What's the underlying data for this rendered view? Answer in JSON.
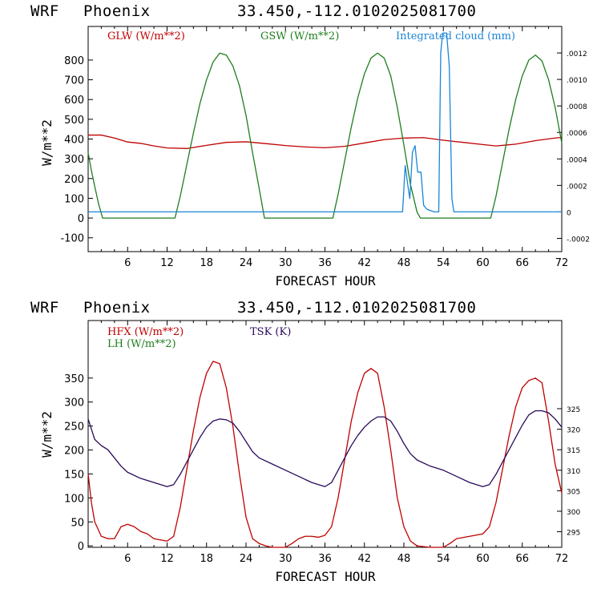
{
  "colors": {
    "red": "#c00000",
    "green": "#1e7d1e",
    "blue": "#1b85d6",
    "purple": "#2a0a5a",
    "axis": "#000000"
  },
  "chart_data": [
    {
      "type": "line",
      "header": {
        "model": "WRF",
        "location": "Phoenix",
        "coords": "33.450,-112.010",
        "init": "2025081700"
      },
      "xlabel": "FORECAST HOUR",
      "ylabel": "W/m**2",
      "xlim": [
        0,
        72
      ],
      "ylim": [
        -170,
        970
      ],
      "xticks": [
        6,
        12,
        18,
        24,
        30,
        36,
        42,
        48,
        54,
        60,
        66,
        72
      ],
      "yticks": [
        -100,
        0,
        100,
        200,
        300,
        400,
        500,
        600,
        700,
        800
      ],
      "right_axis": {
        "ylim": [
          -0.0003,
          0.0014
        ],
        "ticks": [
          -0.0002,
          0,
          0.0002,
          0.0004,
          0.0006,
          0.0008,
          0.001,
          0.0012
        ],
        "tick_labels": [
          "-.0002",
          "0",
          ".0002",
          ".0004",
          ".0006",
          ".0008",
          ".0010",
          ".0012"
        ]
      },
      "series": [
        {
          "name": "GLW (W/m**2)",
          "color_key": "red",
          "axis": "left",
          "points": [
            [
              0,
              420
            ],
            [
              2,
              420
            ],
            [
              4,
              405
            ],
            [
              6,
              385
            ],
            [
              8,
              378
            ],
            [
              10,
              365
            ],
            [
              12,
              355
            ],
            [
              15,
              352
            ],
            [
              18,
              368
            ],
            [
              21,
              383
            ],
            [
              24,
              386
            ],
            [
              27,
              377
            ],
            [
              30,
              367
            ],
            [
              33,
              360
            ],
            [
              36,
              356
            ],
            [
              39,
              363
            ],
            [
              42,
              380
            ],
            [
              45,
              397
            ],
            [
              48,
              405
            ],
            [
              51,
              407
            ],
            [
              54,
              394
            ],
            [
              57,
              383
            ],
            [
              60,
              372
            ],
            [
              62,
              365
            ],
            [
              65,
              374
            ],
            [
              68,
              392
            ],
            [
              71,
              405
            ],
            [
              72,
              408
            ]
          ]
        },
        {
          "name": "GSW (W/m**2)",
          "color_key": "green",
          "axis": "left",
          "points": [
            [
              0,
              330
            ],
            [
              0.5,
              240
            ],
            [
              1,
              160
            ],
            [
              1.6,
              70
            ],
            [
              2.2,
              0
            ],
            [
              13.2,
              0
            ],
            [
              14,
              110
            ],
            [
              15,
              270
            ],
            [
              16,
              430
            ],
            [
              17,
              580
            ],
            [
              18,
              700
            ],
            [
              19,
              790
            ],
            [
              20,
              835
            ],
            [
              21,
              825
            ],
            [
              22,
              770
            ],
            [
              23,
              670
            ],
            [
              24,
              520
            ],
            [
              25,
              330
            ],
            [
              26,
              150
            ],
            [
              26.8,
              0
            ],
            [
              37.2,
              0
            ],
            [
              38,
              120
            ],
            [
              39,
              290
            ],
            [
              40,
              460
            ],
            [
              41,
              610
            ],
            [
              42,
              730
            ],
            [
              43,
              810
            ],
            [
              44,
              835
            ],
            [
              45,
              810
            ],
            [
              46,
              720
            ],
            [
              47,
              560
            ],
            [
              48,
              370
            ],
            [
              49,
              170
            ],
            [
              50,
              30
            ],
            [
              50.5,
              0
            ],
            [
              61.2,
              0
            ],
            [
              62,
              110
            ],
            [
              63,
              280
            ],
            [
              64,
              450
            ],
            [
              65,
              600
            ],
            [
              66,
              720
            ],
            [
              67,
              800
            ],
            [
              68,
              825
            ],
            [
              69,
              795
            ],
            [
              70,
              700
            ],
            [
              71,
              560
            ],
            [
              72,
              380
            ]
          ]
        },
        {
          "name": "Integrated cloud (mm)",
          "color_key": "blue",
          "axis": "right",
          "points": [
            [
              0,
              0
            ],
            [
              47.8,
              0
            ],
            [
              48.2,
              0.00035
            ],
            [
              48.6,
              0.0002
            ],
            [
              48.9,
              0.0001
            ],
            [
              49.3,
              0.00045
            ],
            [
              49.7,
              0.0005
            ],
            [
              50.1,
              0.0003
            ],
            [
              50.6,
              0.0003
            ],
            [
              51,
              5e-05
            ],
            [
              51.5,
              2e-05
            ],
            [
              52.6,
              0
            ],
            [
              53.3,
              0
            ],
            [
              53.6,
              0.0012
            ],
            [
              53.9,
              0.00135
            ],
            [
              54.5,
              0.00135
            ],
            [
              54.9,
              0.0011
            ],
            [
              55.3,
              0.0001
            ],
            [
              55.6,
              0
            ],
            [
              72,
              0
            ]
          ]
        }
      ]
    },
    {
      "type": "line",
      "header": {
        "model": "WRF",
        "location": "Phoenix",
        "coords": "33.450,-112.010",
        "init": "2025081700"
      },
      "xlabel": "FORECAST HOUR",
      "ylabel": "W/m**2",
      "xlim": [
        0,
        72
      ],
      "ylim": [
        -3,
        470
      ],
      "xticks": [
        6,
        12,
        18,
        24,
        30,
        36,
        42,
        48,
        54,
        60,
        66,
        72
      ],
      "yticks": [
        0,
        50,
        100,
        150,
        200,
        250,
        300,
        350
      ],
      "right_axis": {
        "ylim": [
          291.2,
          346.5
        ],
        "ticks": [
          295,
          300,
          305,
          310,
          315,
          320,
          325
        ],
        "tick_labels": [
          "295",
          "300",
          "305",
          "310",
          "315",
          "320",
          "325"
        ]
      },
      "series": [
        {
          "name": "HFX (W/m**2)",
          "color_key": "red",
          "axis": "left",
          "points": [
            [
              0,
              150
            ],
            [
              0.5,
              90
            ],
            [
              1,
              50
            ],
            [
              2,
              20
            ],
            [
              3,
              15
            ],
            [
              4,
              15
            ],
            [
              5,
              40
            ],
            [
              6,
              45
            ],
            [
              7,
              40
            ],
            [
              8,
              30
            ],
            [
              9,
              25
            ],
            [
              10,
              15
            ],
            [
              12,
              10
            ],
            [
              13,
              20
            ],
            [
              14,
              80
            ],
            [
              15,
              160
            ],
            [
              16,
              240
            ],
            [
              17,
              310
            ],
            [
              18,
              360
            ],
            [
              19,
              385
            ],
            [
              20,
              380
            ],
            [
              21,
              330
            ],
            [
              22,
              250
            ],
            [
              23,
              150
            ],
            [
              24,
              60
            ],
            [
              25,
              15
            ],
            [
              26,
              5
            ],
            [
              27,
              0
            ],
            [
              28,
              -3
            ],
            [
              30,
              -3
            ],
            [
              31,
              5
            ],
            [
              32,
              15
            ],
            [
              33,
              20
            ],
            [
              34,
              20
            ],
            [
              35,
              18
            ],
            [
              36,
              22
            ],
            [
              37,
              40
            ],
            [
              38,
              100
            ],
            [
              39,
              180
            ],
            [
              40,
              260
            ],
            [
              41,
              320
            ],
            [
              42,
              360
            ],
            [
              43,
              370
            ],
            [
              44,
              360
            ],
            [
              45,
              290
            ],
            [
              46,
              200
            ],
            [
              47,
              100
            ],
            [
              48,
              40
            ],
            [
              49,
              10
            ],
            [
              50,
              0
            ],
            [
              52,
              -3
            ],
            [
              54,
              -3
            ],
            [
              55,
              5
            ],
            [
              56,
              15
            ],
            [
              58,
              20
            ],
            [
              60,
              25
            ],
            [
              61,
              40
            ],
            [
              62,
              90
            ],
            [
              63,
              160
            ],
            [
              64,
              230
            ],
            [
              65,
              290
            ],
            [
              66,
              330
            ],
            [
              67,
              345
            ],
            [
              68,
              350
            ],
            [
              69,
              340
            ],
            [
              70,
              260
            ],
            [
              71,
              170
            ],
            [
              72,
              110
            ]
          ]
        },
        {
          "name": "TSK (K)",
          "color_key": "purple",
          "axis": "right",
          "points": [
            [
              0,
              322.5
            ],
            [
              1,
              317.5
            ],
            [
              2,
              316
            ],
            [
              3,
              315
            ],
            [
              4,
              313
            ],
            [
              5,
              311
            ],
            [
              6,
              309.5
            ],
            [
              8,
              308
            ],
            [
              10,
              307
            ],
            [
              12,
              306
            ],
            [
              13,
              306.5
            ],
            [
              14,
              309
            ],
            [
              15,
              312
            ],
            [
              16,
              315
            ],
            [
              17,
              318
            ],
            [
              18,
              320.5
            ],
            [
              19,
              322
            ],
            [
              20,
              322.5
            ],
            [
              21,
              322.3
            ],
            [
              22,
              321.5
            ],
            [
              23,
              319.5
            ],
            [
              24,
              317
            ],
            [
              25,
              314.5
            ],
            [
              26,
              313
            ],
            [
              28,
              311.5
            ],
            [
              30,
              310
            ],
            [
              32,
              308.5
            ],
            [
              34,
              307
            ],
            [
              36,
              306
            ],
            [
              37,
              307
            ],
            [
              38,
              310
            ],
            [
              39,
              313
            ],
            [
              40,
              316
            ],
            [
              41,
              318.5
            ],
            [
              42,
              320.5
            ],
            [
              43,
              322
            ],
            [
              44,
              323
            ],
            [
              45,
              323
            ],
            [
              46,
              322
            ],
            [
              47,
              319.5
            ],
            [
              48,
              316.5
            ],
            [
              49,
              314
            ],
            [
              50,
              312.5
            ],
            [
              52,
              311
            ],
            [
              54,
              310
            ],
            [
              56,
              308.5
            ],
            [
              58,
              307
            ],
            [
              60,
              306
            ],
            [
              61,
              306.5
            ],
            [
              62,
              309
            ],
            [
              63,
              312
            ],
            [
              64,
              315
            ],
            [
              65,
              318
            ],
            [
              66,
              321
            ],
            [
              67,
              323.5
            ],
            [
              68,
              324.5
            ],
            [
              69,
              324.5
            ],
            [
              70,
              324
            ],
            [
              71,
              322.5
            ],
            [
              72,
              320.5
            ]
          ]
        },
        {
          "name": "LH (W/m**2)",
          "color_key": "green",
          "axis": "left",
          "points": []
        }
      ]
    }
  ]
}
